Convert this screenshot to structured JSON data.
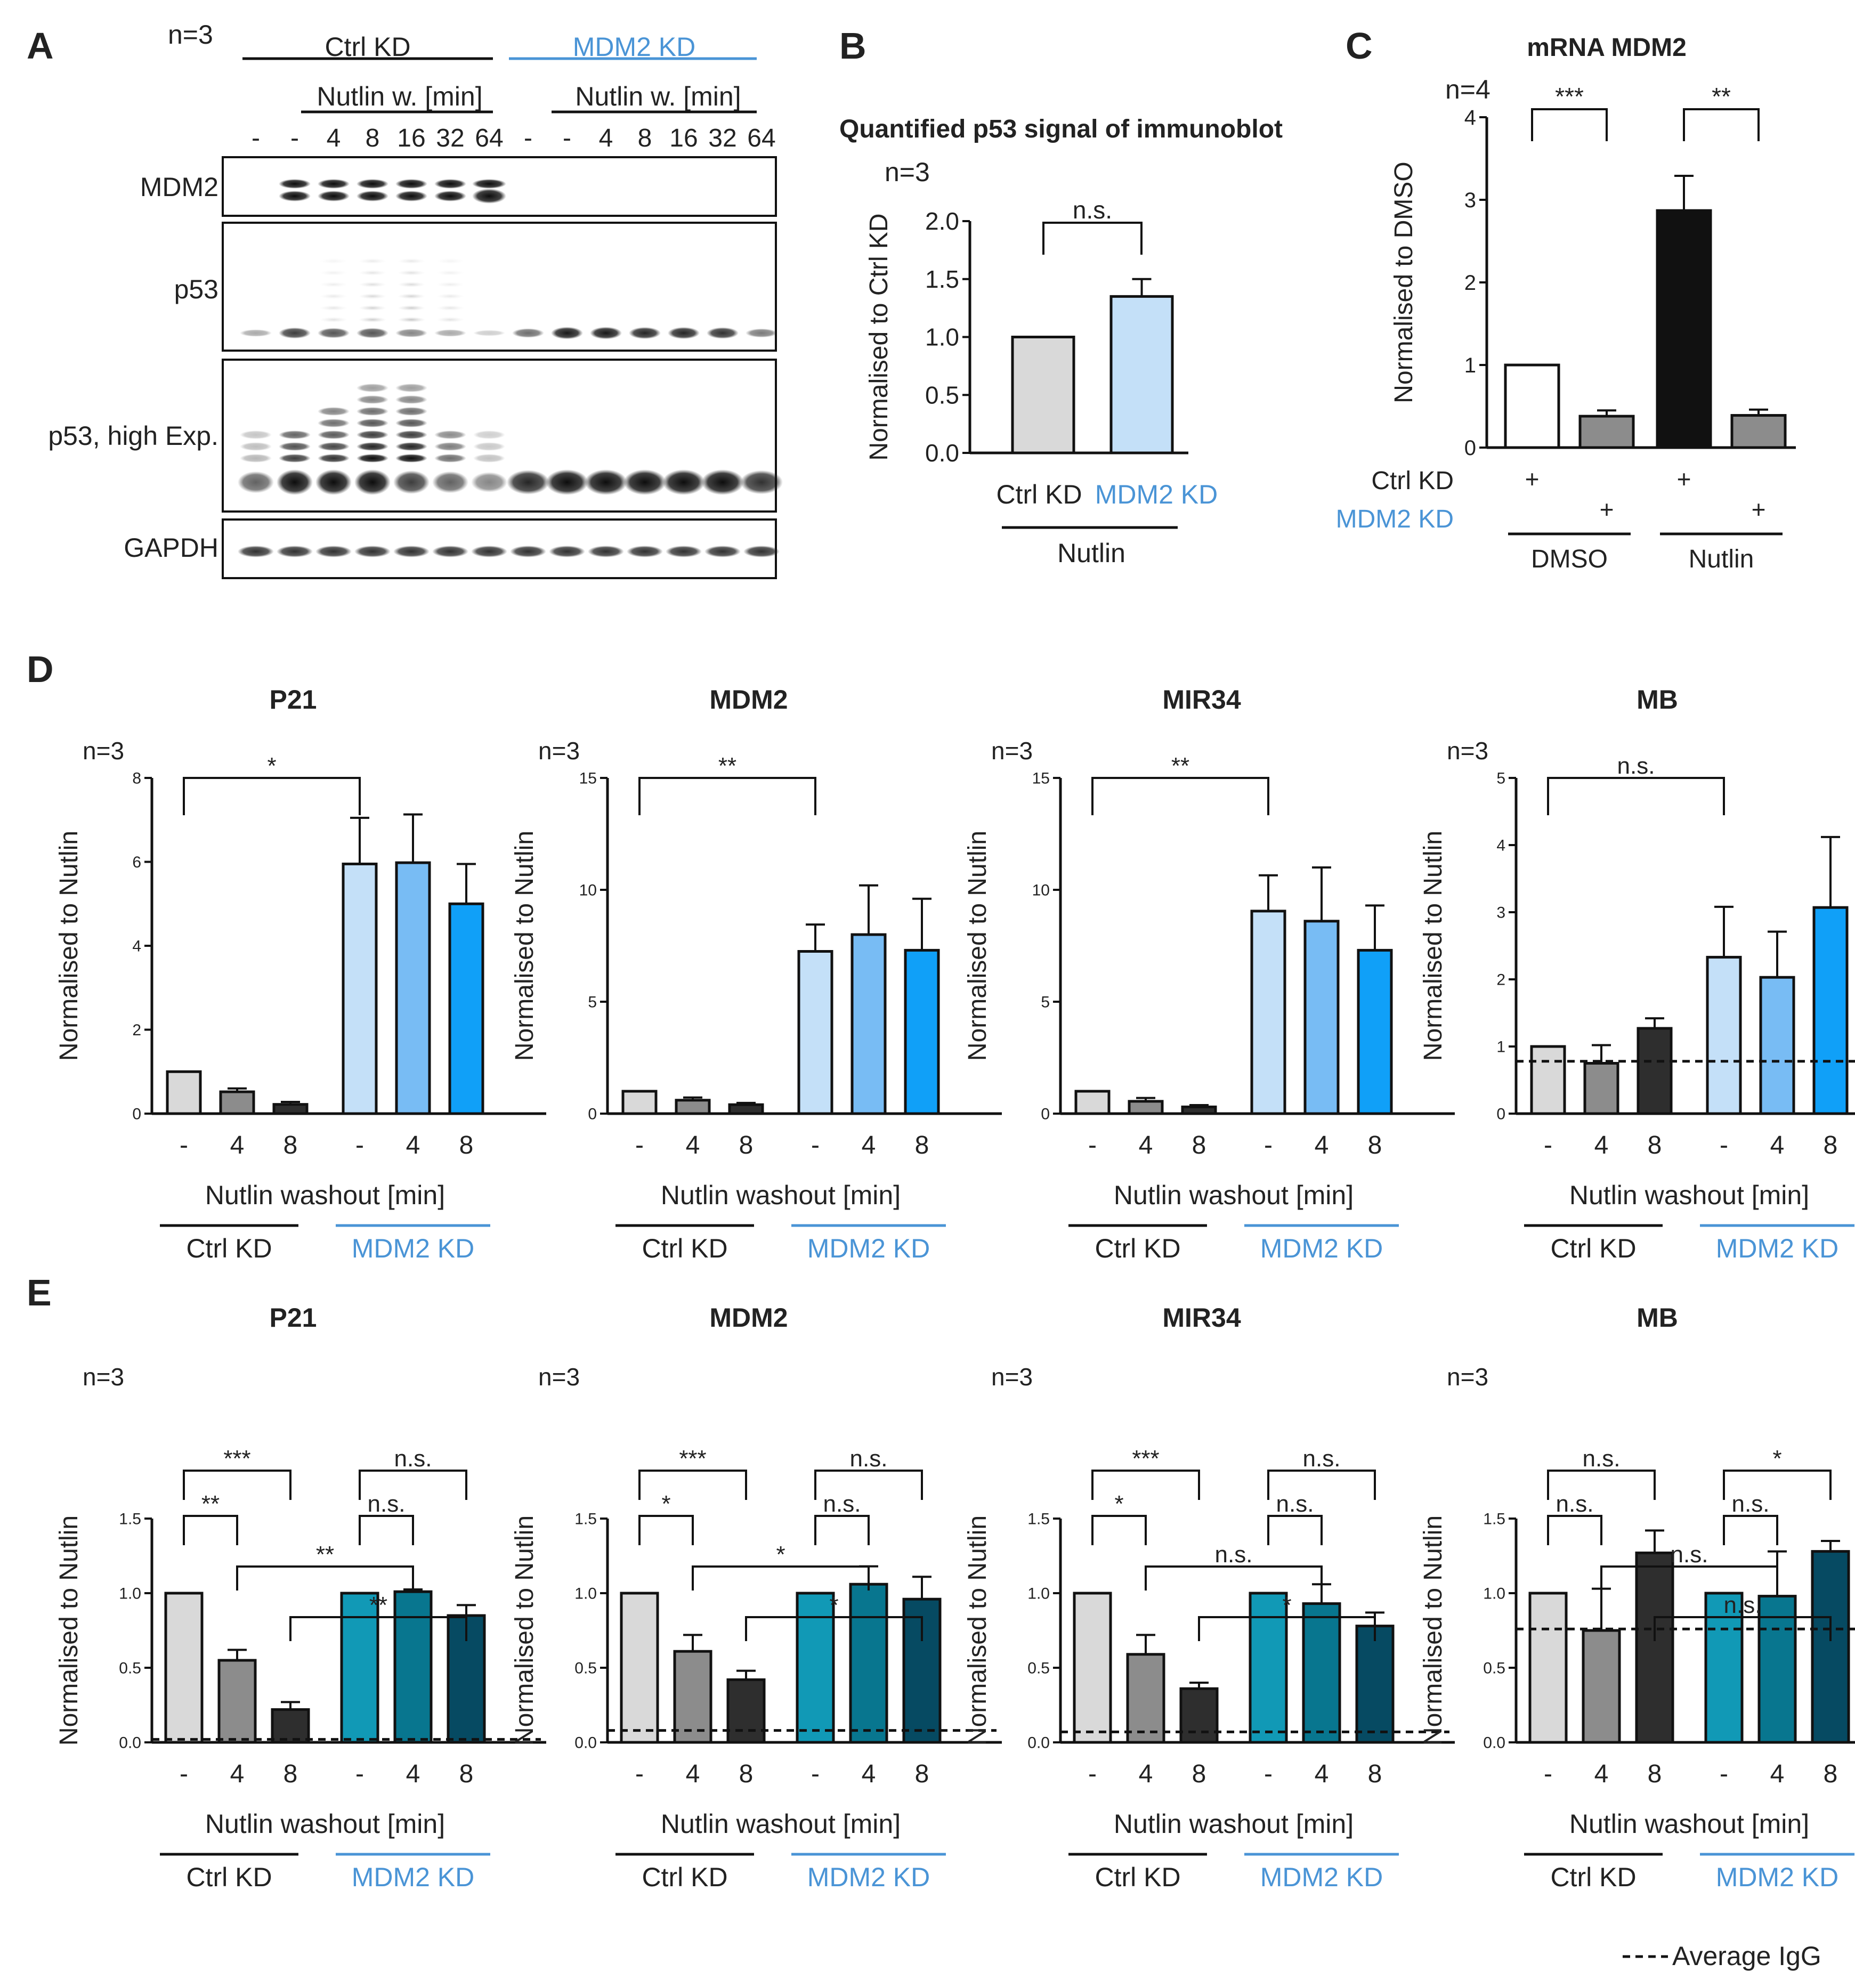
{
  "colors": {
    "ctrl_label": "#222222",
    "mdm2_label": "#4a94d6",
    "d_ctrl": [
      "#d9d9d9",
      "#8c8c8c",
      "#2e2e2e"
    ],
    "d_mdm2": [
      "#c4e0f8",
      "#78bcf4",
      "#10a0f8"
    ],
    "e_ctrl": [
      "#d9d9d9",
      "#8c8c8c",
      "#2e2e2e"
    ],
    "e_mdm2": [
      "#1199b6",
      "#08768f",
      "#064a62"
    ],
    "b_bars": [
      "#d9d9d9",
      "#c4e0f8"
    ],
    "c_bars": [
      "#ffffff",
      "#8c8c8c",
      "#111111",
      "#8c8c8c"
    ],
    "axis": "#111111",
    "igg_line": "#111111"
  },
  "panelA": {
    "letter": "A",
    "n": "n=3",
    "group_ctrl": "Ctrl KD",
    "group_mdm2": "MDM2 KD",
    "washout_label": "Nutlin w. [min]",
    "lanes": [
      "-",
      "-",
      "4",
      "8",
      "16",
      "32",
      "64",
      "-",
      "-",
      "4",
      "8",
      "16",
      "32",
      "64"
    ],
    "blots": [
      "MDM2",
      "p53",
      "p53, high Exp.",
      "GAPDH"
    ]
  },
  "panelB": {
    "letter": "B",
    "n": "n=3",
    "chart_data": {
      "type": "bar",
      "title": "Quantified p53 signal of immunoblot",
      "categories": [
        "Ctrl KD",
        "MDM2 KD"
      ],
      "values": [
        1.0,
        1.35
      ],
      "errors": [
        0,
        0.15
      ],
      "ylabel": "Normalised to Ctrl KD",
      "ylim": [
        0,
        2.0
      ],
      "yticks": [
        "0.0",
        "0.5",
        "1.0",
        "1.5",
        "2.0"
      ],
      "group_label": "Nutlin",
      "significance": [
        {
          "from": 0,
          "to": 1,
          "label": "n.s."
        }
      ]
    }
  },
  "panelC": {
    "letter": "C",
    "n": "n=4",
    "chart_data": {
      "type": "bar",
      "title": "mRNA MDM2",
      "values": [
        1.0,
        0.38,
        2.87,
        0.39
      ],
      "errors": [
        0,
        0.07,
        0.42,
        0.07
      ],
      "ylabel": "Normalised to DMSO",
      "ylim": [
        0,
        4
      ],
      "yticks": [
        "0",
        "1",
        "2",
        "3",
        "4"
      ],
      "row_labels": [
        "Ctrl KD",
        "MDM2 KD"
      ],
      "plus": "+",
      "groups": [
        "DMSO",
        "Nutlin"
      ],
      "significance": [
        {
          "from": 0,
          "to": 1,
          "label": "***"
        },
        {
          "from": 2,
          "to": 3,
          "label": "**"
        }
      ]
    }
  },
  "panelD": {
    "letter": "D",
    "charts": [
      {
        "title": "P21",
        "n": "n=3",
        "values": [
          1.0,
          0.52,
          0.22,
          5.95,
          5.98,
          5.0
        ],
        "errors": [
          0,
          0.08,
          0.06,
          1.1,
          1.15,
          0.95
        ],
        "ylim": [
          0,
          8
        ],
        "yticks": [
          "0",
          "2",
          "4",
          "6",
          "8"
        ],
        "significance": [
          {
            "from": 0,
            "to": 3,
            "label": "*",
            "level": 0
          }
        ]
      },
      {
        "title": "MDM2",
        "n": "n=3",
        "values": [
          1.0,
          0.6,
          0.4,
          7.25,
          8.0,
          7.3
        ],
        "errors": [
          0,
          0.12,
          0.08,
          1.2,
          2.2,
          2.3
        ],
        "ylim": [
          0,
          15
        ],
        "yticks": [
          "0",
          "5",
          "10",
          "15"
        ],
        "significance": [
          {
            "from": 0,
            "to": 3,
            "label": "**",
            "level": 0
          }
        ]
      },
      {
        "title": "MIR34",
        "n": "n=3",
        "values": [
          1.0,
          0.55,
          0.3,
          9.05,
          8.6,
          7.3
        ],
        "errors": [
          0,
          0.15,
          0.08,
          1.6,
          2.4,
          2.0
        ],
        "ylim": [
          0,
          15
        ],
        "yticks": [
          "0",
          "5",
          "10",
          "15"
        ],
        "significance": [
          {
            "from": 0,
            "to": 3,
            "label": "**",
            "level": 0
          }
        ]
      },
      {
        "title": "MB",
        "n": "n=3",
        "values": [
          1.0,
          0.75,
          1.27,
          2.33,
          2.03,
          3.07
        ],
        "errors": [
          0,
          0.27,
          0.15,
          0.75,
          0.68,
          1.05
        ],
        "ylim": [
          0,
          5
        ],
        "yticks": [
          "0",
          "1",
          "2",
          "3",
          "4",
          "5"
        ],
        "igg": 0.78,
        "significance": [
          {
            "from": 0,
            "to": 3,
            "label": "n.s.",
            "level": 0
          }
        ]
      }
    ],
    "ylabel": "Normalised to Nutlin",
    "ticklabels": [
      "-",
      "4",
      "8",
      "-",
      "4",
      "8"
    ],
    "xlabel": "Nutlin washout [min]",
    "group_ctrl": "Ctrl KD",
    "group_mdm2": "MDM2 KD"
  },
  "panelE": {
    "letter": "E",
    "charts": [
      {
        "title": "P21",
        "n": "n=3",
        "values": [
          1.0,
          0.55,
          0.22,
          1.0,
          1.01,
          0.85
        ],
        "errors": [
          0,
          0.07,
          0.05,
          0,
          0.015,
          0.07
        ],
        "ylim": [
          0,
          1.5
        ],
        "yticks": [
          "0.0",
          "0.5",
          "1.0",
          "1.5"
        ],
        "igg": 0.02,
        "significance": [
          {
            "from": 0,
            "to": 1,
            "label": "**",
            "level": 0
          },
          {
            "from": 0,
            "to": 2,
            "label": "***",
            "level": 1
          },
          {
            "from": 3,
            "to": 4,
            "label": "n.s.",
            "level": 0
          },
          {
            "from": 3,
            "to": 5,
            "label": "n.s.",
            "level": 1
          },
          {
            "from": 1,
            "to": 4,
            "label": "**",
            "level": -1
          },
          {
            "from": 2,
            "to": 5,
            "label": "**",
            "level": -2
          }
        ]
      },
      {
        "title": "MDM2",
        "n": "n=3",
        "values": [
          1.0,
          0.61,
          0.42,
          1.0,
          1.06,
          0.96
        ],
        "errors": [
          0,
          0.11,
          0.06,
          0,
          0.12,
          0.15
        ],
        "ylim": [
          0,
          1.5
        ],
        "yticks": [
          "0.0",
          "0.5",
          "1.0",
          "1.5"
        ],
        "igg": 0.08,
        "significance": [
          {
            "from": 0,
            "to": 1,
            "label": "*",
            "level": 0
          },
          {
            "from": 0,
            "to": 2,
            "label": "***",
            "level": 1
          },
          {
            "from": 3,
            "to": 4,
            "label": "n.s.",
            "level": 0
          },
          {
            "from": 3,
            "to": 5,
            "label": "n.s.",
            "level": 1
          },
          {
            "from": 1,
            "to": 4,
            "label": "*",
            "level": -1
          },
          {
            "from": 2,
            "to": 5,
            "label": "*",
            "level": -2
          }
        ]
      },
      {
        "title": "MIR34",
        "n": "n=3",
        "values": [
          1.0,
          0.59,
          0.36,
          1.0,
          0.93,
          0.78
        ],
        "errors": [
          0,
          0.13,
          0.04,
          0,
          0.13,
          0.09
        ],
        "ylim": [
          0,
          1.5
        ],
        "yticks": [
          "0.0",
          "0.5",
          "1.0",
          "1.5"
        ],
        "igg": 0.07,
        "significance": [
          {
            "from": 0,
            "to": 1,
            "label": "*",
            "level": 0
          },
          {
            "from": 0,
            "to": 2,
            "label": "***",
            "level": 1
          },
          {
            "from": 3,
            "to": 4,
            "label": "n.s.",
            "level": 0
          },
          {
            "from": 3,
            "to": 5,
            "label": "n.s.",
            "level": 1
          },
          {
            "from": 1,
            "to": 4,
            "label": "n.s.",
            "level": -1
          },
          {
            "from": 2,
            "to": 5,
            "label": "*",
            "level": -2
          }
        ]
      },
      {
        "title": "MB",
        "n": "n=3",
        "values": [
          1.0,
          0.75,
          1.27,
          1.0,
          0.98,
          1.28
        ],
        "errors": [
          0,
          0.28,
          0.15,
          0,
          0.3,
          0.07
        ],
        "ylim": [
          0,
          1.5
        ],
        "yticks": [
          "0.0",
          "0.5",
          "1.0",
          "1.5"
        ],
        "igg": 0.76,
        "significance": [
          {
            "from": 0,
            "to": 1,
            "label": "n.s.",
            "level": 0
          },
          {
            "from": 0,
            "to": 2,
            "label": "n.s.",
            "level": 1
          },
          {
            "from": 3,
            "to": 4,
            "label": "n.s.",
            "level": 0
          },
          {
            "from": 3,
            "to": 5,
            "label": "*",
            "level": 1
          },
          {
            "from": 1,
            "to": 4,
            "label": "n.s.",
            "level": -1
          },
          {
            "from": 2,
            "to": 5,
            "label": "n.s.",
            "level": -2
          }
        ]
      }
    ],
    "ylabel": "Normalised to Nutlin",
    "ticklabels": [
      "-",
      "4",
      "8",
      "-",
      "4",
      "8"
    ],
    "xlabel": "Nutlin washout [min]",
    "group_ctrl": "Ctrl KD",
    "group_mdm2": "MDM2 KD"
  },
  "legend": {
    "igg": "Average IgG"
  }
}
